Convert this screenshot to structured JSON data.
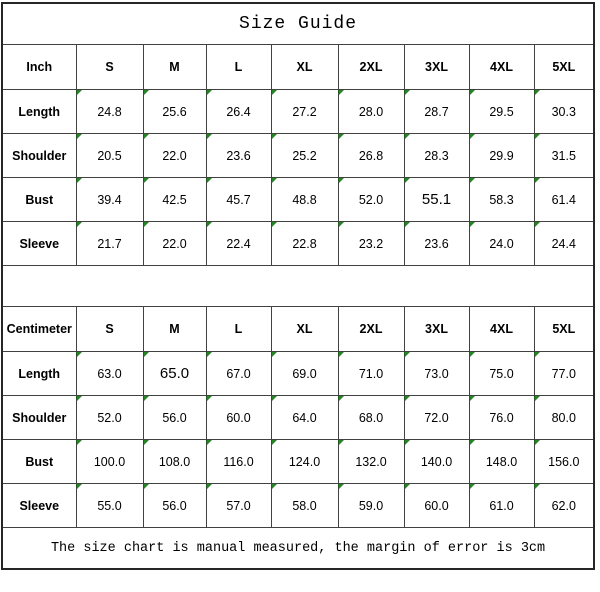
{
  "title": "Size Guide",
  "footer_note": "The size chart is manual measured, the margin of error is 3cm",
  "colors": {
    "cell_flag_green": "#1e8a1e",
    "grid_line": "#424242",
    "outer_border": "#262626",
    "text": "#000000",
    "background": "#ffffff"
  },
  "chart_data": [
    {
      "type": "table",
      "title": "Size Guide",
      "unit": "Inch",
      "columns": [
        "S",
        "M",
        "L",
        "XL",
        "2XL",
        "3XL",
        "4XL",
        "5XL"
      ],
      "rows": [
        {
          "label": "Length",
          "values": [
            "24.8",
            "25.6",
            "26.4",
            "27.2",
            "28.0",
            "28.7",
            "29.5",
            "30.3"
          ]
        },
        {
          "label": "Shoulder",
          "values": [
            "20.5",
            "22.0",
            "23.6",
            "25.2",
            "26.8",
            "28.3",
            "29.9",
            "31.5"
          ]
        },
        {
          "label": "Bust",
          "values": [
            "39.4",
            "42.5",
            "45.7",
            "48.8",
            "52.0",
            "55.1",
            "58.3",
            "61.4"
          ]
        },
        {
          "label": "Sleeve",
          "values": [
            "21.7",
            "22.0",
            "22.4",
            "22.8",
            "23.2",
            "23.6",
            "24.0",
            "24.4"
          ]
        }
      ],
      "emphasized_cells": [
        {
          "row": 2,
          "col": 5
        }
      ]
    },
    {
      "type": "table",
      "title": "Size Guide",
      "unit": "Centimeter",
      "columns": [
        "S",
        "M",
        "L",
        "XL",
        "2XL",
        "3XL",
        "4XL",
        "5XL"
      ],
      "rows": [
        {
          "label": "Length",
          "values": [
            "63.0",
            "65.0",
            "67.0",
            "69.0",
            "71.0",
            "73.0",
            "75.0",
            "77.0"
          ]
        },
        {
          "label": "Shoulder",
          "values": [
            "52.0",
            "56.0",
            "60.0",
            "64.0",
            "68.0",
            "72.0",
            "76.0",
            "80.0"
          ]
        },
        {
          "label": "Bust",
          "values": [
            "100.0",
            "108.0",
            "116.0",
            "124.0",
            "132.0",
            "140.0",
            "148.0",
            "156.0"
          ]
        },
        {
          "label": "Sleeve",
          "values": [
            "55.0",
            "56.0",
            "57.0",
            "58.0",
            "59.0",
            "60.0",
            "61.0",
            "62.0"
          ]
        }
      ],
      "emphasized_cells": [
        {
          "row": 0,
          "col": 1
        }
      ]
    }
  ]
}
